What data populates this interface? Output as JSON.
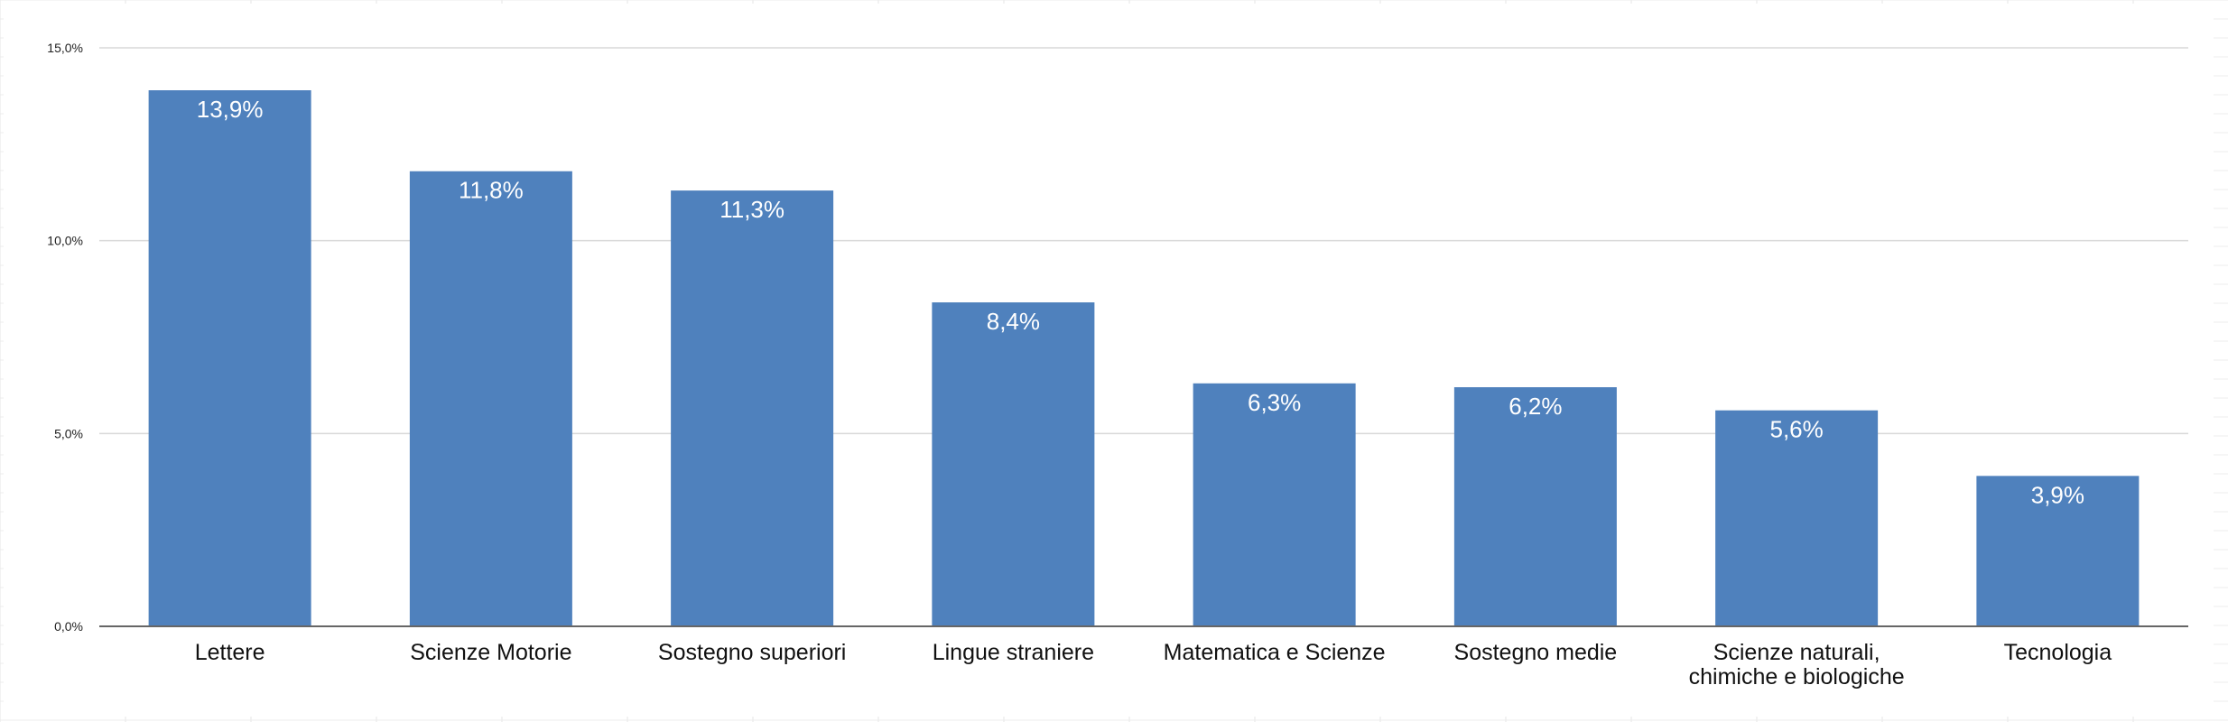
{
  "chart_data": {
    "type": "bar",
    "title": "",
    "xlabel": "",
    "ylabel": "",
    "categories": [
      [
        "Lettere"
      ],
      [
        "Scienze Motorie"
      ],
      [
        "Sostegno superiori"
      ],
      [
        "Lingue straniere"
      ],
      [
        "Matematica e Scienze"
      ],
      [
        "Sostegno medie"
      ],
      [
        "Scienze naturali,",
        "chimiche e biologiche"
      ],
      [
        "Tecnologia"
      ]
    ],
    "values": [
      13.9,
      11.8,
      11.3,
      8.4,
      6.3,
      6.2,
      5.6,
      3.9
    ],
    "value_labels": [
      "13,9%",
      "11,8%",
      "11,3%",
      "8,4%",
      "6,3%",
      "6,2%",
      "5,6%",
      "3,9%"
    ],
    "ylim": [
      0,
      15
    ],
    "yticks": [
      0,
      5,
      10,
      15
    ],
    "ytick_labels": [
      "0,0%",
      "5,0%",
      "10,0%",
      "15,0%"
    ],
    "grid": true,
    "legend": "none",
    "bar_color": "#4f81bd",
    "gridline_color": "#d9d9d9",
    "axis_color": "#666666"
  }
}
